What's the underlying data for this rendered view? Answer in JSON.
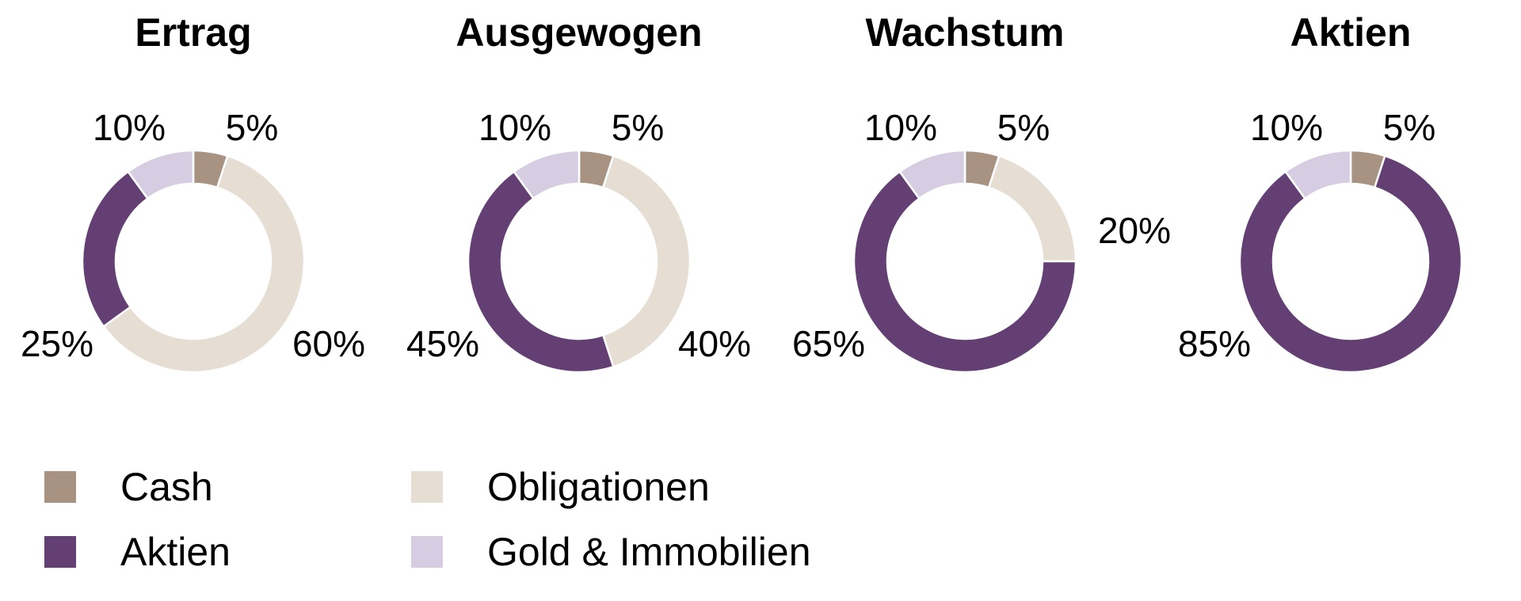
{
  "colors": {
    "Cash": "#a89383",
    "Obligationen": "#e6ddd3",
    "Aktien": "#633f73",
    "Gold & Immobilien": "#d7cde2"
  },
  "chart_data": [
    {
      "type": "pie",
      "title": "Ertrag",
      "slices": [
        {
          "label": "Cash",
          "value": 5
        },
        {
          "label": "Obligationen",
          "value": 60
        },
        {
          "label": "Aktien",
          "value": 25
        },
        {
          "label": "Gold & Immobilien",
          "value": 10
        }
      ]
    },
    {
      "type": "pie",
      "title": "Ausgewogen",
      "slices": [
        {
          "label": "Cash",
          "value": 5
        },
        {
          "label": "Obligationen",
          "value": 40
        },
        {
          "label": "Aktien",
          "value": 45
        },
        {
          "label": "Gold & Immobilien",
          "value": 10
        }
      ]
    },
    {
      "type": "pie",
      "title": "Wachstum",
      "slices": [
        {
          "label": "Cash",
          "value": 5
        },
        {
          "label": "Obligationen",
          "value": 20
        },
        {
          "label": "Aktien",
          "value": 65
        },
        {
          "label": "Gold & Immobilien",
          "value": 10
        }
      ]
    },
    {
      "type": "pie",
      "title": "Aktien",
      "slices": [
        {
          "label": "Cash",
          "value": 5
        },
        {
          "label": "Aktien",
          "value": 85
        },
        {
          "label": "Gold & Immobilien",
          "value": 10
        }
      ]
    }
  ],
  "legend": [
    {
      "label": "Cash"
    },
    {
      "label": "Aktien"
    },
    {
      "label": "Obligationen"
    },
    {
      "label": "Gold & Immobilien"
    }
  ]
}
